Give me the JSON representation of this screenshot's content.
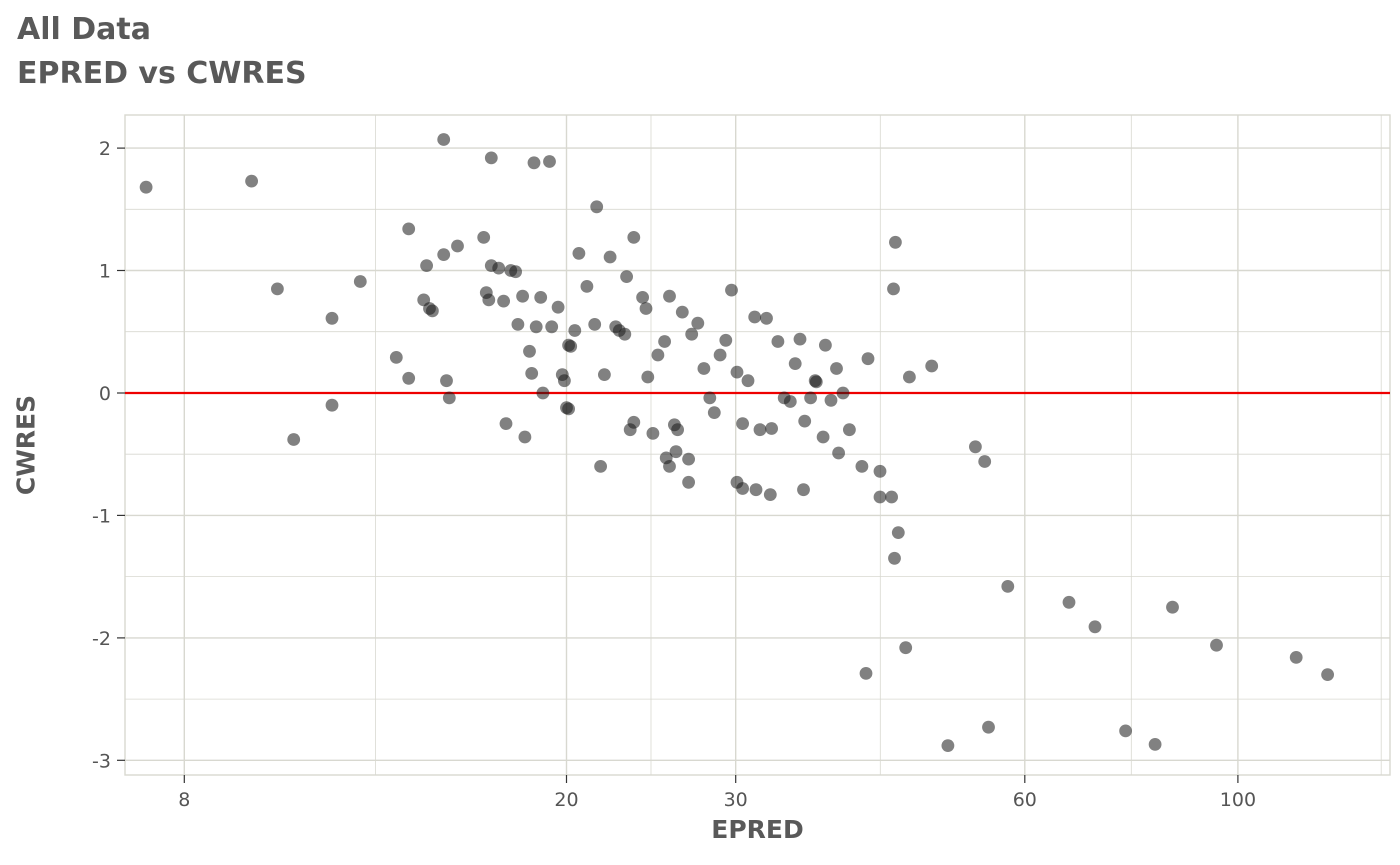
{
  "chart_data": {
    "type": "scatter",
    "title": "All Data",
    "subtitle": "EPRED vs CWRES",
    "xlabel": "EPRED",
    "ylabel": "CWRES",
    "x_scale": "log10",
    "xlim": [
      6.94,
      144
    ],
    "ylim": [
      -3.12,
      2.27
    ],
    "x_ticks": [
      8,
      20,
      30,
      60,
      100
    ],
    "x_minor": [
      12.65,
      24.49,
      42.43,
      77.46,
      141
    ],
    "y_ticks": [
      -3,
      -2,
      -1,
      0,
      1,
      2
    ],
    "y_minor": [
      -2.5,
      -1.5,
      -0.5,
      0.5,
      1.5
    ],
    "grid": true,
    "legend_position": "none",
    "grid_color": "#d8d8d0",
    "point_color": "#1a1a1a",
    "point_opacity": 0.55,
    "point_radius": 6.4,
    "refline": {
      "y": 0,
      "color": "#ee0000"
    },
    "points": [
      [
        7.3,
        1.68
      ],
      [
        9.4,
        1.73
      ],
      [
        10.0,
        0.85
      ],
      [
        10.4,
        -0.38
      ],
      [
        11.4,
        0.61
      ],
      [
        11.4,
        -0.1
      ],
      [
        12.2,
        0.91
      ],
      [
        13.3,
        0.29
      ],
      [
        13.7,
        0.12
      ],
      [
        13.7,
        1.34
      ],
      [
        14.2,
        0.76
      ],
      [
        14.4,
        0.69
      ],
      [
        14.5,
        0.67
      ],
      [
        14.3,
        1.04
      ],
      [
        14.9,
        1.13
      ],
      [
        14.9,
        2.07
      ],
      [
        15.1,
        -0.04
      ],
      [
        15.0,
        0.1
      ],
      [
        15.4,
        1.2
      ],
      [
        16.4,
        1.27
      ],
      [
        16.5,
        0.82
      ],
      [
        16.6,
        0.76
      ],
      [
        16.7,
        1.92
      ],
      [
        16.7,
        1.04
      ],
      [
        17.0,
        1.02
      ],
      [
        17.2,
        0.75
      ],
      [
        17.3,
        -0.25
      ],
      [
        17.5,
        1.0
      ],
      [
        17.7,
        0.99
      ],
      [
        17.8,
        0.56
      ],
      [
        18.0,
        0.79
      ],
      [
        18.1,
        -0.36
      ],
      [
        18.3,
        0.34
      ],
      [
        18.4,
        0.16
      ],
      [
        18.5,
        1.88
      ],
      [
        18.6,
        0.54
      ],
      [
        18.8,
        0.78
      ],
      [
        18.9,
        0.0
      ],
      [
        19.2,
        1.89
      ],
      [
        19.3,
        0.54
      ],
      [
        19.6,
        0.7
      ],
      [
        19.8,
        0.15
      ],
      [
        19.9,
        0.1
      ],
      [
        20.0,
        -0.12
      ],
      [
        20.1,
        -0.13
      ],
      [
        20.1,
        0.39
      ],
      [
        20.2,
        0.38
      ],
      [
        20.4,
        0.51
      ],
      [
        20.6,
        1.14
      ],
      [
        21.0,
        0.87
      ],
      [
        21.4,
        0.56
      ],
      [
        21.5,
        1.52
      ],
      [
        21.7,
        -0.6
      ],
      [
        21.9,
        0.15
      ],
      [
        22.2,
        1.11
      ],
      [
        22.5,
        0.54
      ],
      [
        22.7,
        0.51
      ],
      [
        23.0,
        0.48
      ],
      [
        23.1,
        0.95
      ],
      [
        23.3,
        -0.3
      ],
      [
        23.5,
        1.27
      ],
      [
        23.5,
        -0.24
      ],
      [
        24.0,
        0.78
      ],
      [
        24.2,
        0.69
      ],
      [
        24.3,
        0.13
      ],
      [
        24.6,
        -0.33
      ],
      [
        24.9,
        0.31
      ],
      [
        25.3,
        0.42
      ],
      [
        25.4,
        -0.53
      ],
      [
        25.6,
        0.79
      ],
      [
        25.6,
        -0.6
      ],
      [
        25.9,
        -0.26
      ],
      [
        26.0,
        -0.48
      ],
      [
        26.1,
        -0.3
      ],
      [
        26.4,
        0.66
      ],
      [
        26.8,
        -0.54
      ],
      [
        26.8,
        -0.73
      ],
      [
        27.0,
        0.48
      ],
      [
        27.4,
        0.57
      ],
      [
        27.8,
        0.2
      ],
      [
        28.2,
        -0.04
      ],
      [
        28.5,
        -0.16
      ],
      [
        28.9,
        0.31
      ],
      [
        29.3,
        0.43
      ],
      [
        29.7,
        0.84
      ],
      [
        30.1,
        0.17
      ],
      [
        30.1,
        -0.73
      ],
      [
        30.5,
        -0.78
      ],
      [
        30.5,
        -0.25
      ],
      [
        30.9,
        0.1
      ],
      [
        31.4,
        0.62
      ],
      [
        31.5,
        -0.79
      ],
      [
        31.8,
        -0.3
      ],
      [
        32.3,
        0.61
      ],
      [
        32.6,
        -0.83
      ],
      [
        32.7,
        -0.29
      ],
      [
        33.2,
        0.42
      ],
      [
        33.7,
        -0.04
      ],
      [
        34.2,
        -0.07
      ],
      [
        34.6,
        0.24
      ],
      [
        35.0,
        0.44
      ],
      [
        35.3,
        -0.79
      ],
      [
        35.4,
        -0.23
      ],
      [
        35.9,
        -0.04
      ],
      [
        36.3,
        0.1
      ],
      [
        36.4,
        0.09
      ],
      [
        37.0,
        -0.36
      ],
      [
        37.2,
        0.39
      ],
      [
        37.7,
        -0.06
      ],
      [
        38.2,
        0.2
      ],
      [
        38.4,
        -0.49
      ],
      [
        38.8,
        0.0
      ],
      [
        39.4,
        -0.3
      ],
      [
        40.6,
        -0.6
      ],
      [
        41.0,
        -2.29
      ],
      [
        41.2,
        0.28
      ],
      [
        42.4,
        -0.64
      ],
      [
        42.4,
        -0.85
      ],
      [
        43.6,
        -0.85
      ],
      [
        43.8,
        0.85
      ],
      [
        44.0,
        1.23
      ],
      [
        44.3,
        -1.14
      ],
      [
        43.9,
        -1.35
      ],
      [
        45.1,
        -2.08
      ],
      [
        45.5,
        0.13
      ],
      [
        48.0,
        0.22
      ],
      [
        49.9,
        -2.88
      ],
      [
        53.3,
        -0.44
      ],
      [
        54.5,
        -0.56
      ],
      [
        55.0,
        -2.73
      ],
      [
        57.6,
        -1.58
      ],
      [
        66.7,
        -1.71
      ],
      [
        71.0,
        -1.91
      ],
      [
        76.4,
        -2.76
      ],
      [
        82.0,
        -2.87
      ],
      [
        85.5,
        -1.75
      ],
      [
        95.0,
        -2.06
      ],
      [
        115.0,
        -2.16
      ],
      [
        124.0,
        -2.3
      ]
    ]
  }
}
